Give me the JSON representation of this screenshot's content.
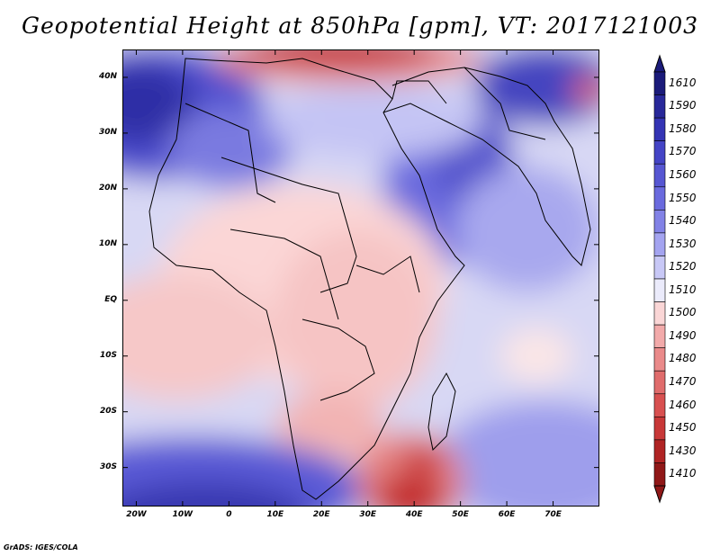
{
  "title": "Geopotential Height at 850hPa [gpm], VT: 2017121003",
  "footer": "GrADS: IGES/COLA",
  "map": {
    "lon_range": [
      -23,
      80
    ],
    "lat_range": [
      -37,
      45
    ],
    "lat_ticks": [
      {
        "label": "40N",
        "value": 40
      },
      {
        "label": "30N",
        "value": 30
      },
      {
        "label": "20N",
        "value": 20
      },
      {
        "label": "10N",
        "value": 10
      },
      {
        "label": "EQ",
        "value": 0
      },
      {
        "label": "10S",
        "value": -10
      },
      {
        "label": "20S",
        "value": -20
      },
      {
        "label": "30S",
        "value": -30
      }
    ],
    "lon_ticks": [
      {
        "label": "20W",
        "value": -20
      },
      {
        "label": "10W",
        "value": -10
      },
      {
        "label": "0",
        "value": 0
      },
      {
        "label": "10E",
        "value": 10
      },
      {
        "label": "20E",
        "value": 20
      },
      {
        "label": "30E",
        "value": 30
      },
      {
        "label": "40E",
        "value": 40
      },
      {
        "label": "50E",
        "value": 50
      },
      {
        "label": "60E",
        "value": 60
      },
      {
        "label": "70E",
        "value": 70
      }
    ]
  },
  "colorbar": {
    "levels": [
      "1610",
      "1590",
      "1580",
      "1570",
      "1560",
      "1550",
      "1540",
      "1530",
      "1520",
      "1510",
      "1500",
      "1490",
      "1480",
      "1470",
      "1460",
      "1450",
      "1430",
      "1410"
    ],
    "colors": [
      "#1b1b7a",
      "#28289a",
      "#3434b4",
      "#4444c6",
      "#5656d2",
      "#6a6ade",
      "#8282e6",
      "#a4a4f0",
      "#c8c8f6",
      "#ebebfb",
      "#fad6d6",
      "#f2aaaa",
      "#ea8a8a",
      "#e06c6c",
      "#d85050",
      "#c83838",
      "#b02424",
      "#901818"
    ]
  }
}
